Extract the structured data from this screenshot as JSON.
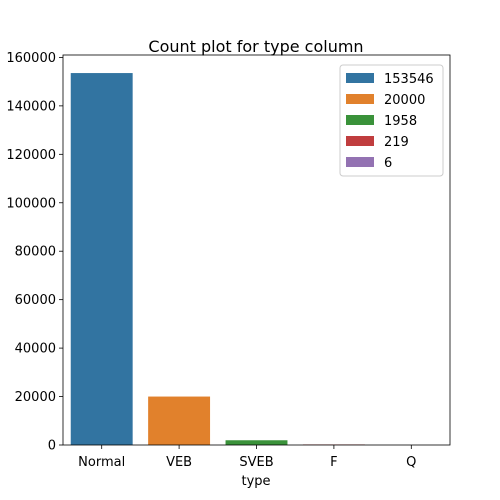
{
  "chart_data": {
    "type": "bar",
    "title": "Count plot for type column",
    "xlabel": "type",
    "ylabel": "",
    "categories": [
      "Normal",
      "VEB",
      "SVEB",
      "F",
      "Q"
    ],
    "values": [
      153546,
      20000,
      1958,
      219,
      6
    ],
    "colors": [
      "#3274a1",
      "#e1812c",
      "#3a923a",
      "#c03d3e",
      "#9372b2"
    ],
    "ylim": [
      0,
      161000
    ],
    "yticks": [
      0,
      20000,
      40000,
      60000,
      80000,
      100000,
      120000,
      140000,
      160000
    ],
    "grid": false,
    "legend": {
      "placement": "top-right",
      "entries": [
        "153546",
        "20000",
        "1958",
        "219",
        "6"
      ]
    }
  }
}
